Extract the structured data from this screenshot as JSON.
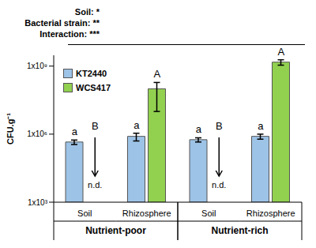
{
  "chart_data": {
    "type": "bar",
    "categories": [
      "Soil",
      "Rhizosphere",
      "Soil",
      "Rhizosphere"
    ],
    "groups": [
      "Nutrient-poor",
      "Nutrient-rich"
    ],
    "y_label": "CFU.g⁻¹",
    "log": "y",
    "ylim": [
      1000,
      3000000000
    ],
    "yticks": [
      {
        "value": 1000,
        "label": "1x10³"
      },
      {
        "value": 1000000,
        "label": "1x10⁶"
      },
      {
        "value": 1000000000,
        "label": "1x10⁹"
      }
    ],
    "series": [
      {
        "name": "KT2440",
        "color": "#9dc3e6",
        "values": [
          450000,
          800000,
          570000,
          800000
        ],
        "errors": [
          100000,
          300000,
          120000,
          200000
        ],
        "letters": [
          "a",
          "a",
          "a",
          "a"
        ]
      },
      {
        "name": "WCS417",
        "color": "#92d050",
        "values": [
          null,
          100000000,
          null,
          1500000000
        ],
        "errors": [
          null,
          90000000,
          null,
          400000000
        ],
        "letters": [
          "B",
          "A",
          "B",
          "A"
        ],
        "missing_label": "n.d."
      }
    ],
    "annotations": [
      "Soil: *",
      "Bacterial strain: **",
      "Interaction: ***"
    ],
    "legend": "upper left"
  }
}
